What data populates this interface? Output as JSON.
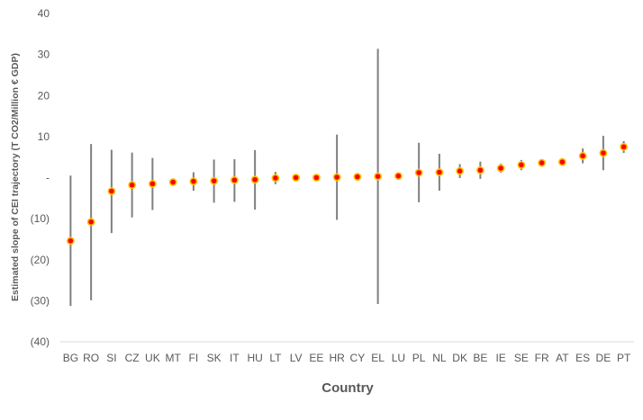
{
  "chart_data": {
    "type": "scatter",
    "xlabel": "Country",
    "ylabel": "Estimated slope of CEI trajectory (T CO2/Million € GDP)",
    "ylim": [
      -40,
      40
    ],
    "yticks": [
      {
        "value": 40,
        "label": "40"
      },
      {
        "value": 30,
        "label": "30"
      },
      {
        "value": 20,
        "label": "20"
      },
      {
        "value": 10,
        "label": "10"
      },
      {
        "value": 0,
        "label": "-"
      },
      {
        "value": -10,
        "label": "(10)"
      },
      {
        "value": -20,
        "label": "(20)"
      },
      {
        "value": -30,
        "label": "(30)"
      },
      {
        "value": -40,
        "label": "(40)"
      }
    ],
    "grid": false,
    "legend": "none",
    "point_color": "#ff0000",
    "point_edge_color": "#ffc000",
    "errorbar_color": "#7f7f7f",
    "points": [
      {
        "country": "BG",
        "value": -15.4,
        "low": -31.3,
        "high": 0.5
      },
      {
        "country": "RO",
        "value": -10.8,
        "low": -29.9,
        "high": 8.2
      },
      {
        "country": "SI",
        "value": -3.3,
        "low": -13.5,
        "high": 6.8
      },
      {
        "country": "CZ",
        "value": -1.8,
        "low": -9.7,
        "high": 6.1
      },
      {
        "country": "UK",
        "value": -1.5,
        "low": -7.9,
        "high": 4.8
      },
      {
        "country": "MT",
        "value": -1.1,
        "low": -1.6,
        "high": -0.6
      },
      {
        "country": "FI",
        "value": -0.9,
        "low": -3.2,
        "high": 1.3
      },
      {
        "country": "SK",
        "value": -0.8,
        "low": -6.1,
        "high": 4.4
      },
      {
        "country": "IT",
        "value": -0.6,
        "low": -5.9,
        "high": 4.5
      },
      {
        "country": "HU",
        "value": -0.5,
        "low": -7.8,
        "high": 6.7
      },
      {
        "country": "LT",
        "value": -0.1,
        "low": -1.6,
        "high": 1.4
      },
      {
        "country": "LV",
        "value": 0.0,
        "low": -0.4,
        "high": 0.4
      },
      {
        "country": "EE",
        "value": 0.0,
        "low": -0.3,
        "high": 0.3
      },
      {
        "country": "HR",
        "value": 0.1,
        "low": -10.3,
        "high": 10.5
      },
      {
        "country": "CY",
        "value": 0.2,
        "low": -0.2,
        "high": 0.6
      },
      {
        "country": "EL",
        "value": 0.3,
        "low": -30.8,
        "high": 31.4
      },
      {
        "country": "LU",
        "value": 0.4,
        "low": 0.0,
        "high": 0.8
      },
      {
        "country": "PL",
        "value": 1.2,
        "low": -6.0,
        "high": 8.5
      },
      {
        "country": "NL",
        "value": 1.3,
        "low": -3.2,
        "high": 5.8
      },
      {
        "country": "DK",
        "value": 1.6,
        "low": -0.1,
        "high": 3.3
      },
      {
        "country": "BE",
        "value": 1.8,
        "low": -0.3,
        "high": 3.9
      },
      {
        "country": "IE",
        "value": 2.3,
        "low": 1.2,
        "high": 3.4
      },
      {
        "country": "SE",
        "value": 3.1,
        "low": 1.8,
        "high": 4.3
      },
      {
        "country": "FR",
        "value": 3.6,
        "low": 2.9,
        "high": 4.3
      },
      {
        "country": "AT",
        "value": 3.8,
        "low": 3.1,
        "high": 4.5
      },
      {
        "country": "ES",
        "value": 5.3,
        "low": 3.5,
        "high": 7.1
      },
      {
        "country": "DE",
        "value": 6.0,
        "low": 1.8,
        "high": 10.2
      },
      {
        "country": "PT",
        "value": 7.5,
        "low": 6.0,
        "high": 8.9
      }
    ]
  }
}
